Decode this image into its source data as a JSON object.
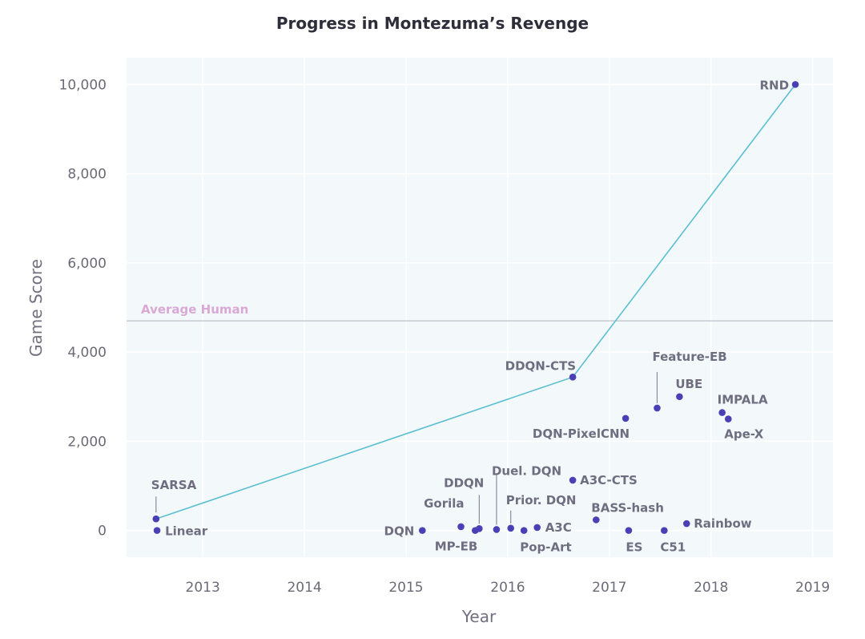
{
  "chart_data": {
    "type": "scatter",
    "title": "Progress in Montezuma’s Revenge",
    "xlabel": "Year",
    "ylabel": "Game Score",
    "xlim": [
      2012.25,
      2019.2
    ],
    "ylim": [
      -600,
      10600
    ],
    "x_ticks": [
      2013,
      2014,
      2015,
      2016,
      2017,
      2018,
      2019
    ],
    "x_tick_labels": [
      "2013",
      "2014",
      "2015",
      "2016",
      "2017",
      "2018",
      "2019"
    ],
    "y_ticks": [
      0,
      2000,
      4000,
      6000,
      8000,
      10000
    ],
    "y_tick_labels": [
      "0",
      "2,000",
      "4,000",
      "6,000",
      "8,000",
      "10,000"
    ],
    "reference_line": {
      "label": "Average Human",
      "value": 4700,
      "color": "#c8c8d2",
      "label_color": "#d9a8d4"
    },
    "colors": {
      "point": "#4a3fb5",
      "frontier_line": "#5bbfd2",
      "plot_background": "#f3f9fb",
      "grid": "#ffffff"
    },
    "points": [
      {
        "name": "SARSA",
        "x": 2012.54,
        "y": 259
      },
      {
        "name": "Linear",
        "x": 2012.55,
        "y": 0
      },
      {
        "name": "DQN",
        "x": 2015.16,
        "y": 0
      },
      {
        "name": "Gorila",
        "x": 2015.54,
        "y": 84
      },
      {
        "name": "MP-EB",
        "x": 2015.68,
        "y": 0
      },
      {
        "name": "DDQN",
        "x": 2015.72,
        "y": 42
      },
      {
        "name": "Duel. DQN",
        "x": 2015.89,
        "y": 22
      },
      {
        "name": "Prior. DQN",
        "x": 2016.03,
        "y": 51
      },
      {
        "name": "Pop-Art",
        "x": 2016.16,
        "y": 0
      },
      {
        "name": "A3C",
        "x": 2016.29,
        "y": 67
      },
      {
        "name": "A3C-CTS",
        "x": 2016.64,
        "y": 1127
      },
      {
        "name": "DDQN-CTS",
        "x": 2016.64,
        "y": 3439
      },
      {
        "name": "BASS-hash",
        "x": 2016.87,
        "y": 238
      },
      {
        "name": "DQN-PixelCNN",
        "x": 2017.16,
        "y": 2514
      },
      {
        "name": "ES",
        "x": 2017.19,
        "y": 0
      },
      {
        "name": "Feature-EB",
        "x": 2017.47,
        "y": 2745
      },
      {
        "name": "C51",
        "x": 2017.54,
        "y": 0
      },
      {
        "name": "UBE",
        "x": 2017.69,
        "y": 3000
      },
      {
        "name": "Rainbow",
        "x": 2017.76,
        "y": 154
      },
      {
        "name": "IMPALA",
        "x": 2018.11,
        "y": 2643
      },
      {
        "name": "Ape-X",
        "x": 2018.17,
        "y": 2500
      },
      {
        "name": "RND",
        "x": 2018.83,
        "y": 10000
      }
    ],
    "frontier": [
      "SARSA",
      "DDQN-CTS",
      "RND"
    ]
  }
}
